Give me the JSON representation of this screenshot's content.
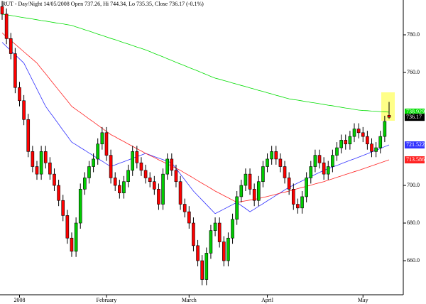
{
  "chart_data": {
    "type": "candlestick",
    "title": "RUT - Day/Night 14/05/2008 Open 737.26, Hi 744.34, Lo 735.35, Close 736.17 (-0.1%)",
    "categories": [
      null,
      null,
      null,
      null,
      "2008",
      null,
      null,
      null,
      null,
      null,
      null,
      null,
      null,
      null,
      null,
      null,
      null,
      null,
      null,
      null,
      null,
      null,
      null,
      null,
      "February",
      null,
      null,
      null,
      null,
      null,
      null,
      null,
      null,
      null,
      null,
      null,
      null,
      null,
      null,
      null,
      null,
      null,
      null,
      "March",
      null,
      null,
      null,
      null,
      null,
      null,
      null,
      null,
      null,
      null,
      null,
      null,
      null,
      null,
      null,
      null,
      null,
      "April",
      null,
      null,
      null,
      null,
      null,
      null,
      null,
      null,
      null,
      null,
      null,
      null,
      null,
      null,
      null,
      null,
      null,
      null,
      null,
      null,
      null,
      "May",
      null,
      null,
      null,
      null,
      null,
      null
    ],
    "open": [
      795,
      791,
      778,
      770,
      752,
      745,
      735,
      718,
      710,
      706,
      718,
      712,
      706,
      700,
      692,
      684,
      672,
      665,
      680,
      698,
      704,
      710,
      714,
      722,
      728,
      716,
      704,
      700,
      696,
      702,
      708,
      718,
      712,
      708,
      704,
      702,
      698,
      690,
      706,
      714,
      708,
      702,
      690,
      686,
      680,
      668,
      660,
      650,
      664,
      676,
      680,
      670,
      660,
      672,
      682,
      694,
      700,
      706,
      698,
      692,
      702,
      710,
      714,
      718,
      714,
      710,
      704,
      698,
      690,
      688,
      694,
      704,
      710,
      716,
      712,
      706,
      710,
      716,
      720,
      724,
      722,
      726,
      730,
      728,
      726,
      722,
      718,
      720,
      726,
      737.26
    ],
    "high": [
      798,
      794,
      781,
      773,
      755,
      748,
      738,
      721,
      713,
      721,
      721,
      715,
      709,
      703,
      695,
      687,
      675,
      683,
      701,
      707,
      713,
      717,
      725,
      731,
      731,
      719,
      707,
      703,
      705,
      711,
      721,
      721,
      715,
      711,
      707,
      705,
      701,
      709,
      717,
      717,
      711,
      705,
      693,
      689,
      683,
      671,
      663,
      667,
      679,
      683,
      683,
      673,
      675,
      685,
      697,
      703,
      709,
      709,
      701,
      705,
      713,
      717,
      721,
      721,
      717,
      713,
      707,
      701,
      693,
      697,
      707,
      713,
      719,
      719,
      715,
      713,
      719,
      723,
      727,
      727,
      729,
      733,
      733,
      731,
      729,
      725,
      723,
      729,
      737,
      744.34
    ],
    "low": [
      788,
      775,
      767,
      749,
      742,
      732,
      715,
      707,
      703,
      703,
      709,
      703,
      697,
      689,
      681,
      669,
      662,
      662,
      677,
      695,
      701,
      707,
      711,
      719,
      713,
      701,
      697,
      693,
      693,
      699,
      705,
      709,
      705,
      701,
      699,
      695,
      687,
      687,
      703,
      705,
      699,
      687,
      683,
      677,
      665,
      657,
      647,
      647,
      661,
      673,
      667,
      657,
      657,
      669,
      679,
      691,
      697,
      695,
      689,
      689,
      699,
      707,
      711,
      711,
      707,
      701,
      695,
      687,
      685,
      685,
      691,
      701,
      707,
      709,
      703,
      703,
      707,
      713,
      717,
      719,
      719,
      723,
      725,
      723,
      719,
      715,
      715,
      717,
      723,
      735.35
    ],
    "close": [
      791,
      778,
      770,
      752,
      745,
      735,
      718,
      710,
      706,
      718,
      712,
      706,
      700,
      692,
      684,
      672,
      665,
      680,
      698,
      704,
      710,
      714,
      722,
      728,
      716,
      704,
      700,
      696,
      702,
      708,
      718,
      712,
      708,
      704,
      702,
      698,
      690,
      706,
      714,
      708,
      702,
      690,
      686,
      680,
      668,
      660,
      650,
      664,
      676,
      680,
      670,
      660,
      672,
      682,
      694,
      700,
      706,
      698,
      692,
      702,
      710,
      714,
      718,
      714,
      710,
      704,
      698,
      690,
      688,
      694,
      704,
      710,
      716,
      712,
      706,
      710,
      716,
      720,
      724,
      722,
      726,
      730,
      728,
      726,
      722,
      718,
      720,
      726,
      734,
      736.17
    ],
    "up_color": "#00cc00",
    "down_color": "#ff0000",
    "close_tag": "736.17",
    "series": [
      {
        "color": "#00dd00",
        "tag": "738.929",
        "values": [
          791,
          790.6,
          790.3,
          789.9,
          789.5,
          789.1,
          788.8,
          788.4,
          788,
          787.6,
          787.3,
          786.9,
          786.5,
          786.1,
          785.8,
          785.4,
          785,
          784.2,
          783.5,
          782.7,
          782,
          781.2,
          780.4,
          779.7,
          778.9,
          778.1,
          777.4,
          776.6,
          775.8,
          775.1,
          774.3,
          773.5,
          772.8,
          772,
          771.1,
          770.1,
          769.2,
          768.3,
          767.3,
          766.4,
          765.4,
          764.5,
          763.6,
          762.6,
          761.7,
          760.8,
          759.8,
          758.9,
          757.9,
          757,
          756.4,
          755.7,
          755.1,
          754.4,
          753.8,
          753.1,
          752.5,
          751.8,
          751.2,
          750.5,
          749.9,
          749.2,
          748.6,
          747.9,
          747.3,
          746.6,
          746,
          745.6,
          745.3,
          744.9,
          744.5,
          744.1,
          743.8,
          743.4,
          743,
          742.6,
          742.3,
          741.9,
          741.5,
          741.1,
          740.8,
          740.4,
          740,
          739.8,
          739.7,
          739.5,
          739.4,
          739.2,
          739.1,
          738.93
        ]
      },
      {
        "color": "#3333ff",
        "tag": "721.522",
        "values": [
          776,
          773.8,
          771.6,
          769.4,
          767.2,
          765,
          760.4,
          755.8,
          751.2,
          746.6,
          742,
          738.8,
          735.7,
          732.5,
          729.3,
          726.2,
          723,
          721.6,
          720.1,
          718.7,
          717.2,
          715.8,
          714.3,
          712.9,
          711.4,
          710,
          710.9,
          711.8,
          712.6,
          713.5,
          714.4,
          715.3,
          716.1,
          717,
          716.2,
          715.3,
          714.5,
          713.7,
          712.8,
          712,
          709,
          706,
          703,
          700,
          697,
          694.6,
          692.2,
          689.8,
          687.4,
          685,
          686.2,
          687.4,
          688.6,
          689.8,
          691,
          689.3,
          687.7,
          686,
          687.4,
          688.9,
          690.3,
          691.8,
          693.2,
          694.7,
          696.1,
          697.6,
          699,
          700.1,
          701.3,
          702.4,
          703.5,
          704.6,
          705.8,
          706.9,
          708,
          708.9,
          709.8,
          710.6,
          711.5,
          712.4,
          713.3,
          714.1,
          715,
          715.9,
          716.8,
          717.8,
          718.7,
          719.6,
          720.6,
          721.52
        ]
      },
      {
        "color": "#ff2222",
        "tag": "713.586",
        "values": [
          781,
          779,
          777,
          775,
          773,
          771,
          769,
          767,
          765,
          762.1,
          759.3,
          756.4,
          753.5,
          750.6,
          747.8,
          744.9,
          742,
          740.3,
          738.7,
          737,
          735.3,
          733.7,
          732,
          730.3,
          728.7,
          727,
          725.8,
          724.5,
          723.3,
          722,
          720.8,
          719.5,
          718.3,
          717,
          715.9,
          714.8,
          713.6,
          712.5,
          711.4,
          710.3,
          709.1,
          708,
          706.6,
          705.3,
          703.9,
          702.5,
          701.1,
          699.8,
          698.4,
          697,
          695.8,
          694.6,
          693.4,
          692.2,
          691,
          691.4,
          691.8,
          692.2,
          692.6,
          693,
          693.6,
          694.1,
          694.7,
          695.3,
          695.9,
          696.4,
          697,
          697.6,
          698.3,
          698.9,
          699.5,
          700.1,
          700.8,
          701.4,
          702,
          702.8,
          703.5,
          704.3,
          705,
          705.8,
          706.5,
          707.3,
          708,
          708.8,
          709.6,
          710.4,
          711.2,
          712,
          712.8,
          713.59
        ]
      }
    ],
    "ylim": [
      641.9,
      798.5
    ],
    "yticks": [
      {
        "value": 660,
        "label": "660.0"
      },
      {
        "value": 680,
        "label": "680.0"
      },
      {
        "value": 700,
        "label": "700.0"
      },
      {
        "value": 760,
        "label": "760.0"
      },
      {
        "value": 780,
        "label": "780.0"
      }
    ]
  }
}
